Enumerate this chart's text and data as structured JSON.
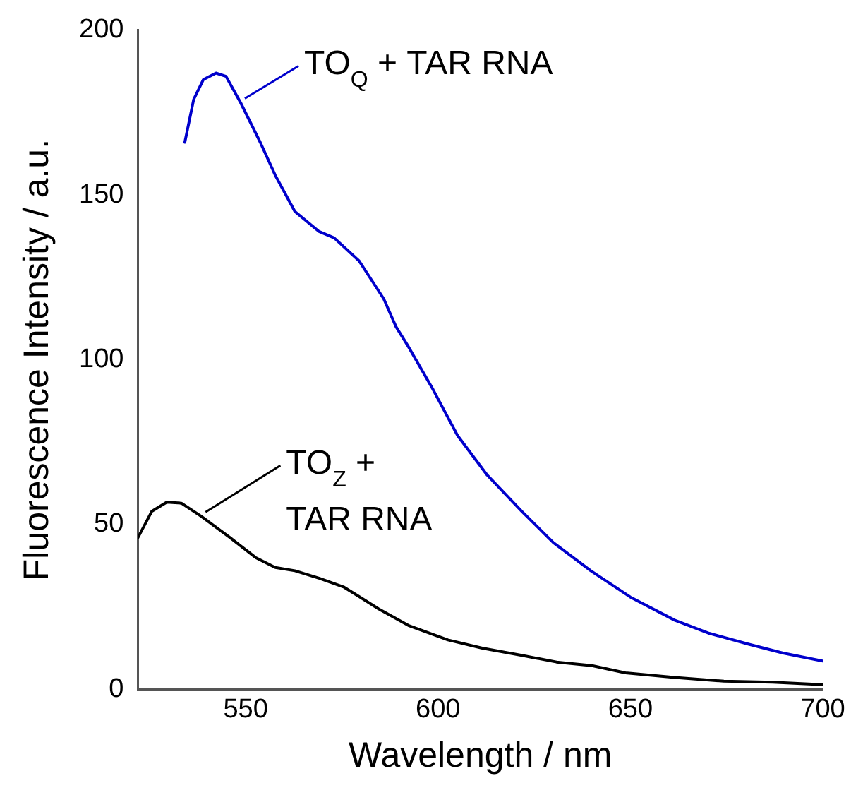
{
  "chart_data": {
    "type": "line",
    "xlabel": "Wavelength / nm",
    "ylabel": "Fluorescence Intensity / a.u.",
    "xlim": [
      522,
      700
    ],
    "xticks": [
      550,
      600,
      650,
      700
    ],
    "ylim": [
      0,
      200
    ],
    "yticks": [
      0,
      50,
      100,
      150,
      200
    ],
    "grid": false,
    "legend": "top left",
    "marker": "none",
    "line_style": "solid",
    "series": [
      {
        "name": "TO$_{Q}$ + TAR RNA",
        "color": "#0000cc",
        "x": [
          534.2,
          536.5,
          539,
          542.3,
          544.9,
          548.7,
          553.8,
          557.7,
          562.8,
          569,
          573,
          579.5,
          585.9,
          589.1,
          592.3,
          598.7,
          605.1,
          612.8,
          621.8,
          630,
          639.7,
          650,
          661.5,
          670.5,
          680.8,
          689.7,
          700
        ],
        "values": [
          166,
          179,
          185,
          187,
          186,
          178,
          166,
          156,
          145,
          139,
          137,
          130,
          118.5,
          110,
          104,
          91,
          77,
          65,
          54,
          44.5,
          36,
          28,
          21,
          17,
          13.7,
          11,
          8.6
        ]
      },
      {
        "name": "TO$_{Z}$ + TAR RNA",
        "color": "#000000",
        "x": [
          522,
          525.6,
          529.5,
          533.3,
          538.5,
          546,
          552.6,
          557.7,
          562.8,
          569.2,
          575.6,
          584.6,
          592.3,
          602.6,
          611.5,
          621.8,
          630.8,
          640,
          648.7,
          661.5,
          674.3,
          687,
          700
        ],
        "values": [
          46,
          54,
          56.8,
          56.5,
          52.5,
          46,
          40,
          37,
          36,
          33.7,
          31,
          24.4,
          19.4,
          15,
          12.5,
          10.3,
          8.3,
          7.2,
          5,
          3.6,
          2.5,
          2.2,
          1.4
        ]
      }
    ]
  }
}
